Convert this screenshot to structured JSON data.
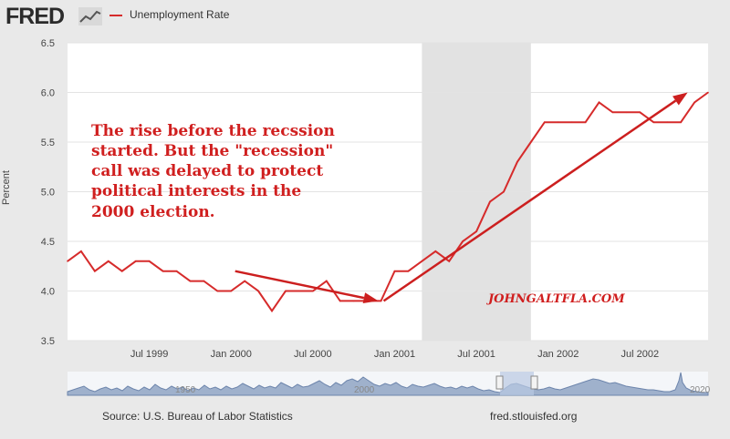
{
  "header": {
    "logo_text": "FRED",
    "logo_icon": "line-chart-icon",
    "series_label": "Unemployment Rate",
    "series_color": "#d62b2b"
  },
  "chart_data": {
    "type": "line",
    "title": "Unemployment Rate",
    "xlabel": "",
    "ylabel": "Percent",
    "ylim": [
      3.5,
      6.5
    ],
    "yticks": [
      "3.5",
      "4.0",
      "4.5",
      "5.0",
      "5.5",
      "6.0",
      "6.5"
    ],
    "xticks": [
      "Jul 1999",
      "Jan 2000",
      "Jul 2000",
      "Jan 2001",
      "Jul 2001",
      "Jan 2002",
      "Jul 2002"
    ],
    "xtick_months": [
      6,
      12,
      18,
      24,
      30,
      36,
      42
    ],
    "x_start": "Jan 1999",
    "x_range_months": [
      0,
      47
    ],
    "recession": {
      "start": 26,
      "end": 34
    },
    "series": [
      {
        "name": "Unemployment Rate",
        "color": "#d62b2b",
        "values": [
          4.3,
          4.4,
          4.2,
          4.3,
          4.2,
          4.3,
          4.3,
          4.2,
          4.2,
          4.1,
          4.1,
          4.0,
          4.0,
          4.1,
          4.0,
          3.8,
          4.0,
          4.0,
          4.0,
          4.1,
          3.9,
          3.9,
          3.9,
          3.9,
          4.2,
          4.2,
          4.3,
          4.4,
          4.3,
          4.5,
          4.6,
          4.9,
          5.0,
          5.3,
          5.5,
          5.7,
          5.7,
          5.7,
          5.7,
          5.9,
          5.8,
          5.8,
          5.8,
          5.7,
          5.7,
          5.7,
          5.9,
          6.0
        ]
      }
    ],
    "annotations": {
      "text_lines": [
        "The rise before the recssion",
        "started. But the \"recession\"",
        "call was delayed to protect",
        "political interests in the",
        "2000 election."
      ],
      "watermark": "JOHNGALTFLA.COM",
      "arrow1": {
        "from": [
          12.3,
          4.2
        ],
        "to": [
          22.8,
          3.9
        ]
      },
      "arrow2": {
        "from": [
          23.2,
          3.9
        ],
        "to": [
          45.5,
          6.0
        ]
      }
    }
  },
  "navigator": {
    "labels": [
      "1950",
      "2000",
      "2020"
    ]
  },
  "footer": {
    "source": "Source: U.S. Bureau of Labor Statistics",
    "url": "fred.stlouisfed.org"
  }
}
